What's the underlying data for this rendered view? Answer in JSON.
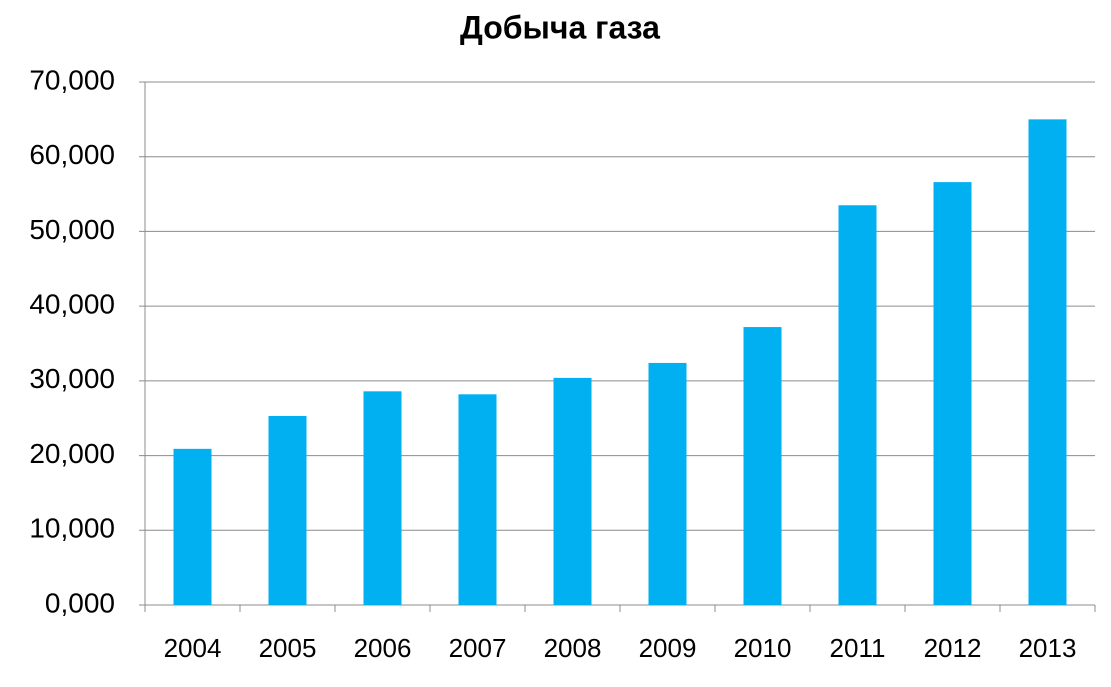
{
  "chart_data": {
    "type": "bar",
    "title": "Добыча газа",
    "categories": [
      "2004",
      "2005",
      "2006",
      "2007",
      "2008",
      "2009",
      "2010",
      "2011",
      "2012",
      "2013"
    ],
    "values": [
      20900,
      25300,
      28600,
      28200,
      30400,
      32400,
      37200,
      53500,
      56600,
      65000
    ],
    "color": "#00b0f0",
    "ylim": [
      0,
      70000
    ],
    "yticks": [
      {
        "value": 0,
        "label": "0,000"
      },
      {
        "value": 10000,
        "label": "10,000"
      },
      {
        "value": 20000,
        "label": "20,000"
      },
      {
        "value": 30000,
        "label": "30,000"
      },
      {
        "value": 40000,
        "label": "40,000"
      },
      {
        "value": 50000,
        "label": "50,000"
      },
      {
        "value": 60000,
        "label": "60,000"
      },
      {
        "value": 70000,
        "label": "70,000"
      }
    ],
    "grid": true
  }
}
